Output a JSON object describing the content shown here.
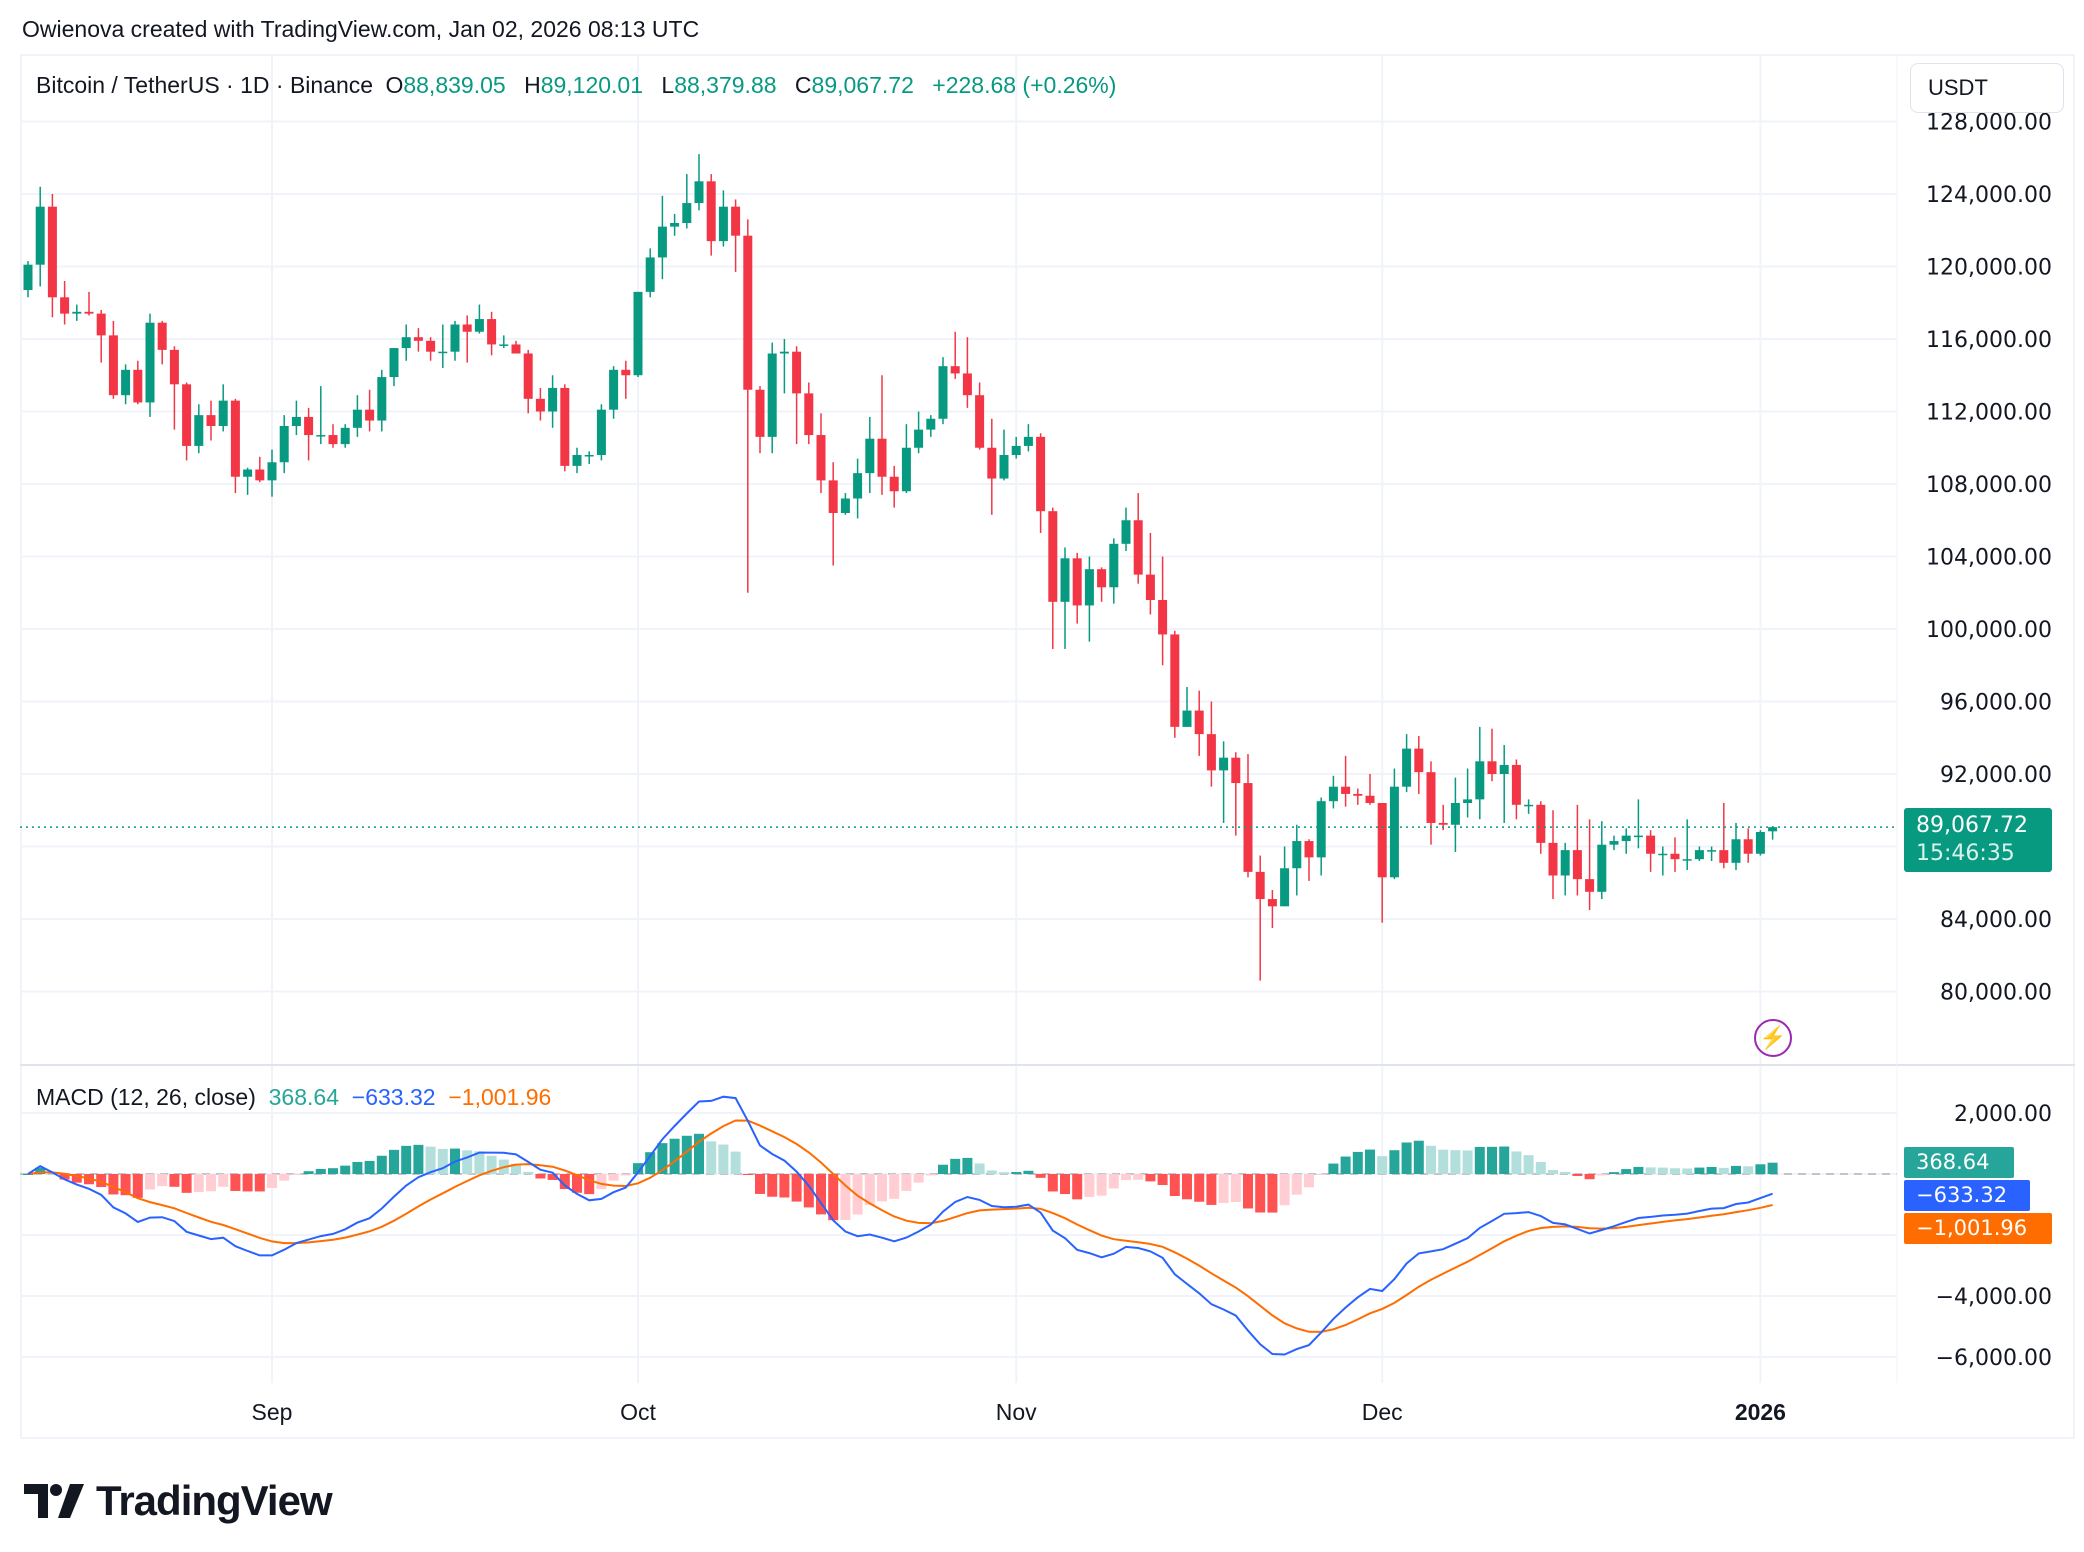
{
  "caption": "Owienova created with TradingView.com, Jan 02, 2026 08:13 UTC",
  "legend": {
    "symbol": "Bitcoin / TetherUS · 1D · Binance",
    "o_label": "O",
    "o": "88,839.05",
    "h_label": "H",
    "h": "89,120.01",
    "l_label": "L",
    "l": "88,379.88",
    "c_label": "C",
    "c": "89,067.72",
    "change": "+228.68 (+0.26%)"
  },
  "currency_button": "USDT",
  "last_price_label": {
    "price": "89,067.72",
    "countdown": "15:46:35"
  },
  "macd_legend": {
    "title": "MACD (12, 26, close)",
    "hist": "368.64",
    "macd": "−633.32",
    "signal": "−1,001.96"
  },
  "macd_labels": {
    "hist": "368.64",
    "macd": "−633.32",
    "signal": "−1,001.96"
  },
  "logo_text": "TradingView",
  "colors": {
    "up": "#089981",
    "down": "#F23645",
    "macd": "#2962FF",
    "signal": "#FF6D00",
    "hist_up_strong": "#26A69A",
    "hist_up_weak": "#B2DFDB",
    "hist_down_strong": "#FF5252",
    "hist_down_weak": "#FFCDD2",
    "alert": "#9C27B0"
  },
  "icons": {
    "alert": "lightning-bolt-icon",
    "logo": "tradingview-logo-icon"
  },
  "chart_data": {
    "type": "candlestick",
    "title": "Bitcoin / TetherUS · 1D · Binance",
    "ylim": [
      76000,
      128000
    ],
    "grid": true,
    "last_price": 89067.72,
    "price_ticks": [
      {
        "value": 128000,
        "label": "128,000.00"
      },
      {
        "value": 124000,
        "label": "124,000.00"
      },
      {
        "value": 120000,
        "label": "120,000.00"
      },
      {
        "value": 116000,
        "label": "116,000.00"
      },
      {
        "value": 112000,
        "label": "112,000.00"
      },
      {
        "value": 108000,
        "label": "108,000.00"
      },
      {
        "value": 104000,
        "label": "104,000.00"
      },
      {
        "value": 100000,
        "label": "100,000.00"
      },
      {
        "value": 96000,
        "label": "96,000.00"
      },
      {
        "value": 92000,
        "label": "92,000.00"
      },
      {
        "value": 84000,
        "label": "84,000.00"
      },
      {
        "value": 80000,
        "label": "80,000.00"
      }
    ],
    "time_ticks": [
      {
        "date": "2025-09-01",
        "label": "Sep",
        "bold": false
      },
      {
        "date": "2025-10-01",
        "label": "Oct",
        "bold": false
      },
      {
        "date": "2025-11-01",
        "label": "Nov",
        "bold": false
      },
      {
        "date": "2025-12-01",
        "label": "Dec",
        "bold": false
      },
      {
        "date": "2026-01-01",
        "label": "2026",
        "bold": true
      }
    ],
    "macd": {
      "fast": 12,
      "slow": 26,
      "signal": 9,
      "source": "close",
      "ylim": [
        -6600,
        2900
      ],
      "ticks": [
        {
          "value": 2000,
          "label": "2,000.00"
        },
        {
          "value": -4000,
          "label": "−4,000.00"
        },
        {
          "value": -6000,
          "label": "−6,000.00"
        }
      ]
    },
    "columns": [
      "date",
      "open",
      "high",
      "low",
      "close"
    ],
    "candles": [
      [
        "2025-08-12",
        118700,
        120300,
        118300,
        120100
      ],
      [
        "2025-08-13",
        120100,
        124400,
        118900,
        123300
      ],
      [
        "2025-08-14",
        123300,
        124000,
        117200,
        118300
      ],
      [
        "2025-08-15",
        118300,
        119200,
        116800,
        117400
      ],
      [
        "2025-08-16",
        117400,
        117900,
        117000,
        117500
      ],
      [
        "2025-08-17",
        117500,
        118600,
        117300,
        117400
      ],
      [
        "2025-08-18",
        117400,
        117600,
        114700,
        116200
      ],
      [
        "2025-08-19",
        116200,
        117000,
        112700,
        112900
      ],
      [
        "2025-08-20",
        112900,
        114600,
        112400,
        114300
      ],
      [
        "2025-08-21",
        114300,
        114800,
        112400,
        112500
      ],
      [
        "2025-08-22",
        112500,
        117400,
        111700,
        116900
      ],
      [
        "2025-08-23",
        116900,
        117000,
        114600,
        115400
      ],
      [
        "2025-08-24",
        115400,
        115600,
        111000,
        113500
      ],
      [
        "2025-08-25",
        113500,
        113600,
        109300,
        110100
      ],
      [
        "2025-08-26",
        110100,
        112400,
        109700,
        111800
      ],
      [
        "2025-08-27",
        111800,
        112600,
        110400,
        111200
      ],
      [
        "2025-08-28",
        111200,
        113500,
        110900,
        112600
      ],
      [
        "2025-08-29",
        112600,
        112700,
        107500,
        108400
      ],
      [
        "2025-08-30",
        108400,
        108900,
        107400,
        108800
      ],
      [
        "2025-08-31",
        108800,
        109500,
        108100,
        108200
      ],
      [
        "2025-09-01",
        108200,
        109900,
        107300,
        109200
      ],
      [
        "2025-09-02",
        109200,
        111800,
        108600,
        111200
      ],
      [
        "2025-09-03",
        111200,
        112600,
        110700,
        111700
      ],
      [
        "2025-09-04",
        111700,
        112200,
        109300,
        110700
      ],
      [
        "2025-09-05",
        110700,
        113400,
        110200,
        110700
      ],
      [
        "2025-09-06",
        110700,
        111300,
        110000,
        110200
      ],
      [
        "2025-09-07",
        110200,
        111300,
        110000,
        111100
      ],
      [
        "2025-09-08",
        111100,
        112900,
        110600,
        112100
      ],
      [
        "2025-09-09",
        112100,
        113200,
        110900,
        111500
      ],
      [
        "2025-09-10",
        111500,
        114300,
        110900,
        113900
      ],
      [
        "2025-09-11",
        113900,
        115500,
        113400,
        115500
      ],
      [
        "2025-09-12",
        115500,
        116800,
        114800,
        116100
      ],
      [
        "2025-09-13",
        116100,
        116600,
        115300,
        115900
      ],
      [
        "2025-09-14",
        115900,
        116100,
        114800,
        115300
      ],
      [
        "2025-09-15",
        115300,
        116800,
        114400,
        115300
      ],
      [
        "2025-09-16",
        115300,
        117000,
        114800,
        116800
      ],
      [
        "2025-09-17",
        116800,
        117300,
        114700,
        116400
      ],
      [
        "2025-09-18",
        116400,
        117900,
        116300,
        117100
      ],
      [
        "2025-09-19",
        117100,
        117500,
        115100,
        115700
      ],
      [
        "2025-09-20",
        115700,
        116200,
        115500,
        115700
      ],
      [
        "2025-09-21",
        115700,
        115900,
        115200,
        115200
      ],
      [
        "2025-09-22",
        115200,
        115400,
        111900,
        112700
      ],
      [
        "2025-09-23",
        112700,
        113300,
        111500,
        112000
      ],
      [
        "2025-09-24",
        112000,
        114000,
        111100,
        113300
      ],
      [
        "2025-09-25",
        113300,
        113500,
        108700,
        109000
      ],
      [
        "2025-09-26",
        109000,
        110000,
        108600,
        109600
      ],
      [
        "2025-09-27",
        109600,
        109800,
        109100,
        109600
      ],
      [
        "2025-09-28",
        109600,
        112400,
        109300,
        112100
      ],
      [
        "2025-09-29",
        112100,
        114500,
        111600,
        114300
      ],
      [
        "2025-09-30",
        114300,
        114800,
        112700,
        114000
      ],
      [
        "2025-10-01",
        114000,
        118600,
        113900,
        118600
      ],
      [
        "2025-10-02",
        118600,
        121000,
        118300,
        120500
      ],
      [
        "2025-10-03",
        120500,
        123900,
        119300,
        122200
      ],
      [
        "2025-10-04",
        122200,
        122900,
        121700,
        122400
      ],
      [
        "2025-10-05",
        122400,
        125100,
        122100,
        123500
      ],
      [
        "2025-10-06",
        123500,
        126200,
        123100,
        124700
      ],
      [
        "2025-10-07",
        124700,
        125100,
        120600,
        121400
      ],
      [
        "2025-10-08",
        121400,
        124200,
        121100,
        123300
      ],
      [
        "2025-10-09",
        123300,
        123700,
        119700,
        121700
      ],
      [
        "2025-10-10",
        121700,
        122600,
        102000,
        113200
      ],
      [
        "2025-10-11",
        113200,
        113400,
        109700,
        110600
      ],
      [
        "2025-10-12",
        110600,
        115800,
        109700,
        115200
      ],
      [
        "2025-10-13",
        115200,
        116000,
        113000,
        115300
      ],
      [
        "2025-10-14",
        115300,
        115600,
        110200,
        113000
      ],
      [
        "2025-10-15",
        113000,
        113600,
        110200,
        110700
      ],
      [
        "2025-10-16",
        110700,
        111900,
        107500,
        108200
      ],
      [
        "2025-10-17",
        108200,
        109200,
        103500,
        106400
      ],
      [
        "2025-10-18",
        106400,
        107500,
        106300,
        107200
      ],
      [
        "2025-10-19",
        107200,
        109400,
        106100,
        108600
      ],
      [
        "2025-10-20",
        108600,
        111700,
        107500,
        110500
      ],
      [
        "2025-10-21",
        110500,
        114000,
        107400,
        108400
      ],
      [
        "2025-10-22",
        108400,
        109000,
        106700,
        107600
      ],
      [
        "2025-10-23",
        107600,
        111300,
        107500,
        110000
      ],
      [
        "2025-10-24",
        110000,
        112000,
        109700,
        111000
      ],
      [
        "2025-10-25",
        111000,
        111800,
        110600,
        111600
      ],
      [
        "2025-10-26",
        111600,
        115000,
        111300,
        114500
      ],
      [
        "2025-10-27",
        114500,
        116400,
        113800,
        114100
      ],
      [
        "2025-10-28",
        114100,
        116100,
        112200,
        112900
      ],
      [
        "2025-10-29",
        112900,
        113600,
        109900,
        110000
      ],
      [
        "2025-10-30",
        110000,
        111600,
        106300,
        108300
      ],
      [
        "2025-10-31",
        108300,
        111000,
        108200,
        109600
      ],
      [
        "2025-11-01",
        109600,
        110600,
        109400,
        110100
      ],
      [
        "2025-11-02",
        110100,
        111300,
        109800,
        110600
      ],
      [
        "2025-11-03",
        110600,
        110800,
        105300,
        106500
      ],
      [
        "2025-11-04",
        106500,
        106700,
        98900,
        101500
      ],
      [
        "2025-11-05",
        101500,
        104500,
        98900,
        103900
      ],
      [
        "2025-11-06",
        103900,
        104200,
        100300,
        101300
      ],
      [
        "2025-11-07",
        101300,
        104000,
        99300,
        103300
      ],
      [
        "2025-11-08",
        103300,
        103400,
        101500,
        102300
      ],
      [
        "2025-11-09",
        102300,
        105000,
        101400,
        104700
      ],
      [
        "2025-11-10",
        104700,
        106700,
        104300,
        106000
      ],
      [
        "2025-11-11",
        106000,
        107500,
        102500,
        103000
      ],
      [
        "2025-11-12",
        103000,
        105300,
        100800,
        101600
      ],
      [
        "2025-11-13",
        101600,
        104000,
        98000,
        99700
      ],
      [
        "2025-11-14",
        99700,
        99900,
        94000,
        94600
      ],
      [
        "2025-11-15",
        94600,
        96800,
        94600,
        95500
      ],
      [
        "2025-11-16",
        95500,
        96600,
        93000,
        94200
      ],
      [
        "2025-11-17",
        94200,
        96000,
        91300,
        92200
      ],
      [
        "2025-11-18",
        92200,
        93800,
        89300,
        92900
      ],
      [
        "2025-11-19",
        92900,
        93200,
        88600,
        91500
      ],
      [
        "2025-11-20",
        91500,
        93100,
        86300,
        86600
      ],
      [
        "2025-11-21",
        86600,
        87500,
        80600,
        85100
      ],
      [
        "2025-11-22",
        85100,
        85600,
        83500,
        84700
      ],
      [
        "2025-11-23",
        84700,
        88000,
        84700,
        86800
      ],
      [
        "2025-11-24",
        86800,
        89200,
        85300,
        88300
      ],
      [
        "2025-11-25",
        88300,
        88400,
        86100,
        87400
      ],
      [
        "2025-11-26",
        87400,
        90700,
        86400,
        90500
      ],
      [
        "2025-11-27",
        90500,
        91900,
        90100,
        91300
      ],
      [
        "2025-11-28",
        91300,
        93000,
        90200,
        90900
      ],
      [
        "2025-11-29",
        90900,
        91200,
        90300,
        90800
      ],
      [
        "2025-11-30",
        90800,
        92000,
        90300,
        90400
      ],
      [
        "2025-12-01",
        90400,
        90400,
        83800,
        86300
      ],
      [
        "2025-12-02",
        86300,
        92300,
        86200,
        91300
      ],
      [
        "2025-12-03",
        91300,
        94200,
        91000,
        93400
      ],
      [
        "2025-12-04",
        93400,
        94100,
        90900,
        92100
      ],
      [
        "2025-12-05",
        92100,
        92700,
        88100,
        89300
      ],
      [
        "2025-12-06",
        89300,
        90300,
        88900,
        89200
      ],
      [
        "2025-12-07",
        89200,
        91800,
        87700,
        90400
      ],
      [
        "2025-12-08",
        90400,
        92300,
        89600,
        90600
      ],
      [
        "2025-12-09",
        90600,
        94600,
        89500,
        92700
      ],
      [
        "2025-12-10",
        92700,
        94500,
        91600,
        92000
      ],
      [
        "2025-12-11",
        92000,
        93600,
        89300,
        92500
      ],
      [
        "2025-12-12",
        92500,
        92800,
        89500,
        90300
      ],
      [
        "2025-12-13",
        90300,
        90600,
        89800,
        90300
      ],
      [
        "2025-12-14",
        90300,
        90500,
        87600,
        88200
      ],
      [
        "2025-12-15",
        88200,
        90000,
        85100,
        86400
      ],
      [
        "2025-12-16",
        86400,
        88200,
        85300,
        87800
      ],
      [
        "2025-12-17",
        87800,
        90300,
        85300,
        86200
      ],
      [
        "2025-12-18",
        86200,
        89500,
        84500,
        85500
      ],
      [
        "2025-12-19",
        85500,
        89400,
        85100,
        88100
      ],
      [
        "2025-12-20",
        88100,
        88600,
        87800,
        88300
      ],
      [
        "2025-12-21",
        88300,
        89000,
        87600,
        88600
      ],
      [
        "2025-12-22",
        88600,
        90600,
        87900,
        88600
      ],
      [
        "2025-12-23",
        88600,
        88900,
        86600,
        87600
      ],
      [
        "2025-12-24",
        87600,
        88000,
        86400,
        87600
      ],
      [
        "2025-12-25",
        87600,
        88500,
        86600,
        87300
      ],
      [
        "2025-12-26",
        87300,
        89500,
        86700,
        87300
      ],
      [
        "2025-12-27",
        87300,
        88000,
        87200,
        87800
      ],
      [
        "2025-12-28",
        87800,
        88000,
        87200,
        87800
      ],
      [
        "2025-12-29",
        87800,
        90400,
        86800,
        87100
      ],
      [
        "2025-12-30",
        87100,
        89300,
        86700,
        88400
      ],
      [
        "2025-12-31",
        88400,
        89000,
        87100,
        87600
      ],
      [
        "2026-01-01",
        87600,
        88900,
        87500,
        88800
      ],
      [
        "2026-01-02",
        88839.05,
        89120.01,
        88379.88,
        89067.72
      ]
    ]
  }
}
